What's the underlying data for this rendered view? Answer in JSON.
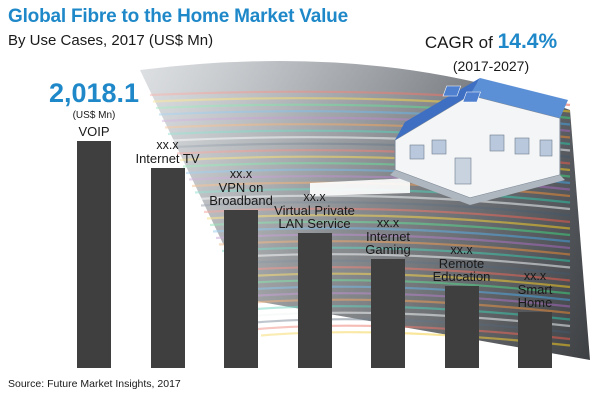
{
  "title": "Global Fibre to the Home Market Value",
  "subtitle": "By Use Cases, 2017 (US$ Mn)",
  "cagr": {
    "prefix": "CAGR of ",
    "value": "14.4%",
    "period": "(2017-2027)"
  },
  "source": "Source: Future Market Insights, 2017",
  "chart_data": {
    "type": "bar",
    "categories": [
      "VOIP",
      "Internet TV",
      "VPN on Broadband",
      "Virtual Private LAN Service",
      "Internet Gaming",
      "Remote Education",
      "Smart Home"
    ],
    "category_lines": [
      [
        "VOIP"
      ],
      [
        "Internet TV"
      ],
      [
        "VPN on",
        "Broadband"
      ],
      [
        "Virtual Private",
        "LAN Service"
      ],
      [
        "Internet",
        "Gaming"
      ],
      [
        "Remote",
        "Education"
      ],
      [
        "Smart",
        "Home"
      ]
    ],
    "value_labels": [
      "2,018.1",
      "xx.x",
      "xx.x",
      "xx.x",
      "xx.x",
      "xx.x",
      "xx.x"
    ],
    "highlight": {
      "value": "2,018.1",
      "unit": "(US$ Mn)"
    },
    "relative_heights": [
      1.0,
      0.881,
      0.696,
      0.594,
      0.481,
      0.363,
      0.248
    ],
    "colors": {
      "bar": "#3f3f3f",
      "accent": "#1e88c9",
      "house_roof": "#5b8fd6"
    },
    "xlabel": "",
    "ylabel": ""
  }
}
